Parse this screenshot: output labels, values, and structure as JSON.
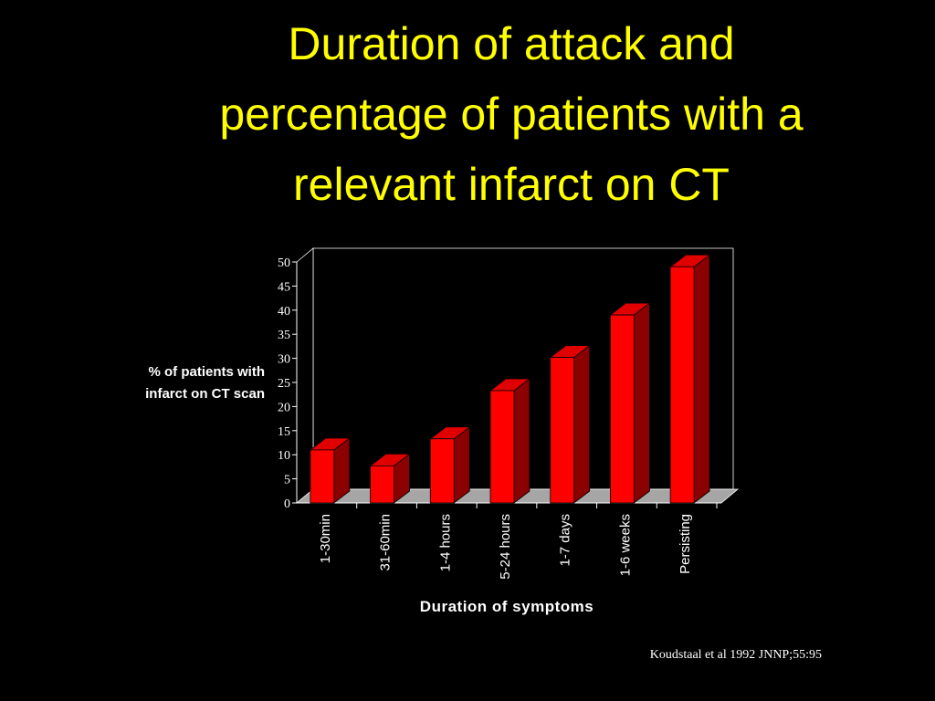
{
  "slide": {
    "title_lines": [
      "Duration of attack and",
      "percentage of patients with a",
      "relevant infarct on CT"
    ],
    "citation": "Koudstaal et al 1992 JNNP;55:95"
  },
  "chart_data": {
    "type": "bar",
    "categories": [
      "1-30min",
      "31-60min",
      "1-4 hours",
      "5-24 hours",
      "1-7 days",
      "1-6 weeks",
      "Persisting"
    ],
    "values": [
      11,
      7.7,
      13.3,
      23.3,
      30.2,
      39,
      49
    ],
    "ylabel_lines": [
      "% of patients with",
      "infarct on CT scan"
    ],
    "xlabel": "Duration of symptoms",
    "ylim": [
      0,
      50
    ],
    "yticks": [
      "0",
      "5",
      "10",
      "15",
      "20",
      "25",
      "30",
      "35",
      "40",
      "45",
      "50"
    ],
    "style": "3d",
    "grid": false,
    "legend": "none",
    "colors": {
      "bar_front": "#ff0000",
      "bar_side": "#8b0000",
      "bar_top": "#e00000",
      "floor": "#a6a6a6",
      "walls": "#000000",
      "axis_text": "#ffffff",
      "title": "#ffff00"
    }
  }
}
